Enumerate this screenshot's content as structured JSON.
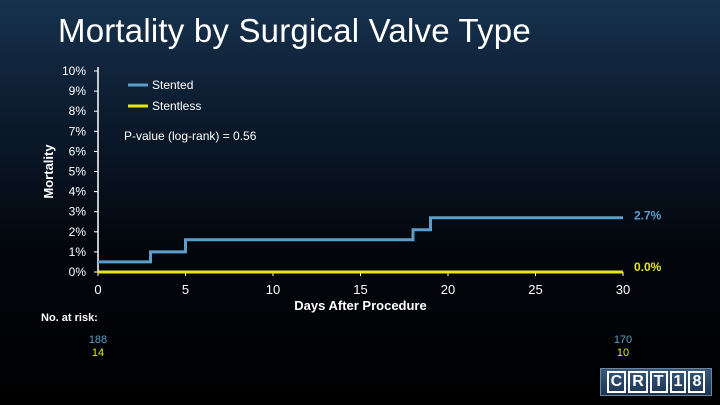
{
  "slide": {
    "title": "Mortality by Surgical Valve Type",
    "logo_text": "CRT18"
  },
  "chart_data": {
    "type": "line",
    "step": true,
    "xlabel": "Days After Procedure",
    "ylabel": "Mortality",
    "xlim": [
      0,
      30
    ],
    "ylim": [
      0,
      10
    ],
    "x_ticks": [
      0,
      5,
      10,
      15,
      20,
      25,
      30
    ],
    "y_ticks": [
      "0%",
      "1%",
      "2%",
      "3%",
      "4%",
      "5%",
      "6%",
      "7%",
      "8%",
      "9%",
      "10%"
    ],
    "grid": false,
    "legend_position": "top-left",
    "annotation": "P-value (log-rank) = 0.56",
    "series": [
      {
        "name": "Stented",
        "color": "#5b9ec9",
        "x": [
          0,
          3,
          3,
          5,
          5,
          18,
          18,
          19,
          19,
          30
        ],
        "y": [
          0.5,
          0.5,
          1.0,
          1.0,
          1.6,
          1.6,
          2.1,
          2.1,
          2.7,
          2.7
        ],
        "end_label": "2.7%",
        "end_label_color": "#5b9ec9"
      },
      {
        "name": "Stentless",
        "color": "#e6e619",
        "x": [
          0,
          30
        ],
        "y": [
          0,
          0
        ],
        "end_label": "0.0%",
        "end_label_color": "#e6e619"
      }
    ],
    "at_risk": {
      "label": "No. at risk:",
      "days": [
        0,
        30
      ],
      "rows": [
        {
          "series": "Stented",
          "color": "#5b9ec9",
          "values": [
            "188",
            "170"
          ]
        },
        {
          "series": "Stentless",
          "color": "#e6e619",
          "values": [
            "14",
            "10"
          ]
        }
      ]
    }
  }
}
